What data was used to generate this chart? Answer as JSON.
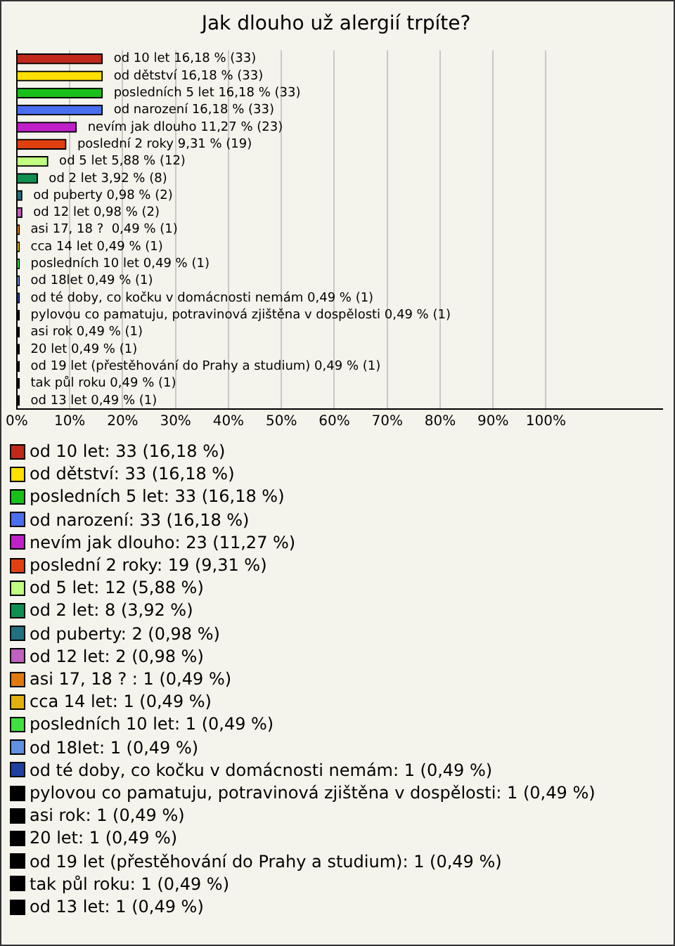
{
  "chart_data": {
    "type": "bar",
    "orientation": "horizontal",
    "title": "Jak dlouho už alergií trpíte?",
    "categories": [
      null,
      null,
      null,
      null,
      null,
      null,
      null,
      null,
      null,
      null,
      null,
      null,
      null,
      null,
      null,
      null,
      null,
      null,
      null,
      null,
      null
    ],
    "xlim": [
      0,
      122
    ],
    "xticks": [
      {
        "value": 0,
        "label": "0%"
      },
      {
        "value": 10,
        "label": "10%"
      },
      {
        "value": 20,
        "label": "20%"
      },
      {
        "value": 30,
        "label": "30%"
      },
      {
        "value": 40,
        "label": "40%"
      },
      {
        "value": 50,
        "label": "50%"
      },
      {
        "value": 60,
        "label": "60%"
      },
      {
        "value": 70,
        "label": "70%"
      },
      {
        "value": 80,
        "label": "80%"
      },
      {
        "value": 90,
        "label": "90%"
      },
      {
        "value": 100,
        "label": "100%"
      }
    ],
    "grid": "x",
    "legend": "bottom",
    "tick_labels": "x",
    "series": [
      {
        "name": "od 10 let: 33 (16,18 %)",
        "color": "#c0281a",
        "values": [
          16.18,
          null,
          null,
          null,
          null,
          null,
          null,
          null,
          null,
          null,
          null,
          null,
          null,
          null,
          null,
          null,
          null,
          null,
          null,
          null,
          null
        ],
        "value_labels": [
          "od 10 let 16,18 % (33)",
          null,
          null,
          null,
          null,
          null,
          null,
          null,
          null,
          null,
          null,
          null,
          null,
          null,
          null,
          null,
          null,
          null,
          null,
          null,
          null
        ]
      },
      {
        "name": "od dětství: 33 (16,18 %)",
        "color": "#ffe000",
        "values": [
          null,
          16.18,
          null,
          null,
          null,
          null,
          null,
          null,
          null,
          null,
          null,
          null,
          null,
          null,
          null,
          null,
          null,
          null,
          null,
          null,
          null
        ],
        "value_labels": [
          null,
          "od dětství 16,18 % (33)",
          null,
          null,
          null,
          null,
          null,
          null,
          null,
          null,
          null,
          null,
          null,
          null,
          null,
          null,
          null,
          null,
          null,
          null,
          null
        ]
      },
      {
        "name": "posledních 5 let: 33 (16,18 %)",
        "color": "#19c019",
        "values": [
          null,
          null,
          16.18,
          null,
          null,
          null,
          null,
          null,
          null,
          null,
          null,
          null,
          null,
          null,
          null,
          null,
          null,
          null,
          null,
          null,
          null
        ],
        "value_labels": [
          null,
          null,
          "posledních 5 let 16,18 % (33)",
          null,
          null,
          null,
          null,
          null,
          null,
          null,
          null,
          null,
          null,
          null,
          null,
          null,
          null,
          null,
          null,
          null,
          null
        ]
      },
      {
        "name": "od narození: 33 (16,18 %)",
        "color": "#4a6ef0",
        "values": [
          null,
          null,
          null,
          16.18,
          null,
          null,
          null,
          null,
          null,
          null,
          null,
          null,
          null,
          null,
          null,
          null,
          null,
          null,
          null,
          null,
          null
        ],
        "value_labels": [
          null,
          null,
          null,
          "od narození 16,18 % (33)",
          null,
          null,
          null,
          null,
          null,
          null,
          null,
          null,
          null,
          null,
          null,
          null,
          null,
          null,
          null,
          null,
          null
        ]
      },
      {
        "name": "nevím jak dlouho: 23 (11,27 %)",
        "color": "#c020c8",
        "values": [
          null,
          null,
          null,
          null,
          11.27,
          null,
          null,
          null,
          null,
          null,
          null,
          null,
          null,
          null,
          null,
          null,
          null,
          null,
          null,
          null,
          null
        ],
        "value_labels": [
          null,
          null,
          null,
          null,
          "nevím jak dlouho 11,27 % (23)",
          null,
          null,
          null,
          null,
          null,
          null,
          null,
          null,
          null,
          null,
          null,
          null,
          null,
          null,
          null,
          null
        ]
      },
      {
        "name": "poslední 2 roky: 19 (9,31 %)",
        "color": "#e04010",
        "values": [
          null,
          null,
          null,
          null,
          null,
          9.31,
          null,
          null,
          null,
          null,
          null,
          null,
          null,
          null,
          null,
          null,
          null,
          null,
          null,
          null,
          null
        ],
        "value_labels": [
          null,
          null,
          null,
          null,
          null,
          "poslední 2 roky 9,31 % (19)",
          null,
          null,
          null,
          null,
          null,
          null,
          null,
          null,
          null,
          null,
          null,
          null,
          null,
          null,
          null
        ]
      },
      {
        "name": "od 5 let: 12 (5,88 %)",
        "color": "#c0ff80",
        "values": [
          null,
          null,
          null,
          null,
          null,
          null,
          5.88,
          null,
          null,
          null,
          null,
          null,
          null,
          null,
          null,
          null,
          null,
          null,
          null,
          null,
          null
        ],
        "value_labels": [
          null,
          null,
          null,
          null,
          null,
          null,
          "od 5 let 5,88 % (12)",
          null,
          null,
          null,
          null,
          null,
          null,
          null,
          null,
          null,
          null,
          null,
          null,
          null,
          null
        ]
      },
      {
        "name": "od 2 let: 8 (3,92 %)",
        "color": "#109050",
        "values": [
          null,
          null,
          null,
          null,
          null,
          null,
          null,
          3.92,
          null,
          null,
          null,
          null,
          null,
          null,
          null,
          null,
          null,
          null,
          null,
          null,
          null
        ],
        "value_labels": [
          null,
          null,
          null,
          null,
          null,
          null,
          null,
          "od 2 let 3,92 % (8)",
          null,
          null,
          null,
          null,
          null,
          null,
          null,
          null,
          null,
          null,
          null,
          null,
          null
        ]
      },
      {
        "name": "od puberty: 2 (0,98 %)",
        "color": "#207080",
        "values": [
          null,
          null,
          null,
          null,
          null,
          null,
          null,
          null,
          0.98,
          null,
          null,
          null,
          null,
          null,
          null,
          null,
          null,
          null,
          null,
          null,
          null
        ],
        "value_labels": [
          null,
          null,
          null,
          null,
          null,
          null,
          null,
          null,
          "od puberty 0,98 % (2)",
          null,
          null,
          null,
          null,
          null,
          null,
          null,
          null,
          null,
          null,
          null,
          null
        ]
      },
      {
        "name": "od 12 let: 2 (0,98 %)",
        "color": "#c060c0",
        "values": [
          null,
          null,
          null,
          null,
          null,
          null,
          null,
          null,
          null,
          0.98,
          null,
          null,
          null,
          null,
          null,
          null,
          null,
          null,
          null,
          null,
          null
        ],
        "value_labels": [
          null,
          null,
          null,
          null,
          null,
          null,
          null,
          null,
          null,
          "od 12 let 0,98 % (2)",
          null,
          null,
          null,
          null,
          null,
          null,
          null,
          null,
          null,
          null,
          null
        ]
      },
      {
        "name": "asi 17, 18 ? : 1 (0,49 %)",
        "color": "#e07a10",
        "values": [
          null,
          null,
          null,
          null,
          null,
          null,
          null,
          null,
          null,
          null,
          0.49,
          null,
          null,
          null,
          null,
          null,
          null,
          null,
          null,
          null,
          null
        ],
        "value_labels": [
          null,
          null,
          null,
          null,
          null,
          null,
          null,
          null,
          null,
          null,
          "asi 17, 18 ?  0,49 % (1)",
          null,
          null,
          null,
          null,
          null,
          null,
          null,
          null,
          null,
          null
        ]
      },
      {
        "name": "cca 14 let: 1 (0,49 %)",
        "color": "#e0b010",
        "values": [
          null,
          null,
          null,
          null,
          null,
          null,
          null,
          null,
          null,
          null,
          null,
          0.49,
          null,
          null,
          null,
          null,
          null,
          null,
          null,
          null,
          null
        ],
        "value_labels": [
          null,
          null,
          null,
          null,
          null,
          null,
          null,
          null,
          null,
          null,
          null,
          "cca 14 let 0,49 % (1)",
          null,
          null,
          null,
          null,
          null,
          null,
          null,
          null,
          null
        ]
      },
      {
        "name": "posledních 10 let: 1 (0,49 %)",
        "color": "#40e040",
        "values": [
          null,
          null,
          null,
          null,
          null,
          null,
          null,
          null,
          null,
          null,
          null,
          null,
          0.49,
          null,
          null,
          null,
          null,
          null,
          null,
          null,
          null
        ],
        "value_labels": [
          null,
          null,
          null,
          null,
          null,
          null,
          null,
          null,
          null,
          null,
          null,
          null,
          "posledních 10 let 0,49 % (1)",
          null,
          null,
          null,
          null,
          null,
          null,
          null,
          null
        ]
      },
      {
        "name": "od 18let: 1 (0,49 %)",
        "color": "#6090e0",
        "values": [
          null,
          null,
          null,
          null,
          null,
          null,
          null,
          null,
          null,
          null,
          null,
          null,
          null,
          0.49,
          null,
          null,
          null,
          null,
          null,
          null,
          null
        ],
        "value_labels": [
          null,
          null,
          null,
          null,
          null,
          null,
          null,
          null,
          null,
          null,
          null,
          null,
          null,
          "od 18let 0,49 % (1)",
          null,
          null,
          null,
          null,
          null,
          null,
          null
        ]
      },
      {
        "name": "od té doby, co kočku v domácnosti nemám: 1 (0,49 %)",
        "color": "#2040a0",
        "values": [
          null,
          null,
          null,
          null,
          null,
          null,
          null,
          null,
          null,
          null,
          null,
          null,
          null,
          null,
          0.49,
          null,
          null,
          null,
          null,
          null,
          null
        ],
        "value_labels": [
          null,
          null,
          null,
          null,
          null,
          null,
          null,
          null,
          null,
          null,
          null,
          null,
          null,
          null,
          "od té doby, co kočku v domácnosti nemám 0,49 % (1)",
          null,
          null,
          null,
          null,
          null,
          null
        ]
      },
      {
        "name": "pylovou co pamatuju, potravinová zjištěna v dospělosti: 1 (0,49 %)",
        "color": "#000000",
        "values": [
          null,
          null,
          null,
          null,
          null,
          null,
          null,
          null,
          null,
          null,
          null,
          null,
          null,
          null,
          null,
          0.49,
          null,
          null,
          null,
          null,
          null
        ],
        "value_labels": [
          null,
          null,
          null,
          null,
          null,
          null,
          null,
          null,
          null,
          null,
          null,
          null,
          null,
          null,
          null,
          "pylovou co pamatuju, potravinová zjištěna v dospělosti 0,49 % (1)",
          null,
          null,
          null,
          null,
          null
        ]
      },
      {
        "name": "asi rok: 1 (0,49 %)",
        "color": "#000000",
        "values": [
          null,
          null,
          null,
          null,
          null,
          null,
          null,
          null,
          null,
          null,
          null,
          null,
          null,
          null,
          null,
          null,
          0.49,
          null,
          null,
          null,
          null
        ],
        "value_labels": [
          null,
          null,
          null,
          null,
          null,
          null,
          null,
          null,
          null,
          null,
          null,
          null,
          null,
          null,
          null,
          null,
          "asi rok 0,49 % (1)",
          null,
          null,
          null,
          null
        ]
      },
      {
        "name": "20 let: 1 (0,49 %)",
        "color": "#000000",
        "values": [
          null,
          null,
          null,
          null,
          null,
          null,
          null,
          null,
          null,
          null,
          null,
          null,
          null,
          null,
          null,
          null,
          null,
          0.49,
          null,
          null,
          null
        ],
        "value_labels": [
          null,
          null,
          null,
          null,
          null,
          null,
          null,
          null,
          null,
          null,
          null,
          null,
          null,
          null,
          null,
          null,
          null,
          "20 let 0,49 % (1)",
          null,
          null,
          null
        ]
      },
      {
        "name": "od 19 let (přestěhování do Prahy a studium): 1 (0,49 %)",
        "color": "#000000",
        "values": [
          null,
          null,
          null,
          null,
          null,
          null,
          null,
          null,
          null,
          null,
          null,
          null,
          null,
          null,
          null,
          null,
          null,
          null,
          0.49,
          null,
          null
        ],
        "value_labels": [
          null,
          null,
          null,
          null,
          null,
          null,
          null,
          null,
          null,
          null,
          null,
          null,
          null,
          null,
          null,
          null,
          null,
          null,
          "od 19 let (přestěhování do Prahy a studium) 0,49 % (1)",
          null,
          null
        ]
      },
      {
        "name": "tak půl roku: 1 (0,49 %)",
        "color": "#000000",
        "values": [
          null,
          null,
          null,
          null,
          null,
          null,
          null,
          null,
          null,
          null,
          null,
          null,
          null,
          null,
          null,
          null,
          null,
          null,
          null,
          0.49,
          null
        ],
        "value_labels": [
          null,
          null,
          null,
          null,
          null,
          null,
          null,
          null,
          null,
          null,
          null,
          null,
          null,
          null,
          null,
          null,
          null,
          null,
          null,
          "tak půl roku 0,49 % (1)",
          null
        ]
      },
      {
        "name": "od 13 let: 1 (0,49 %)",
        "color": "#000000",
        "values": [
          null,
          null,
          null,
          null,
          null,
          null,
          null,
          null,
          null,
          null,
          null,
          null,
          null,
          null,
          null,
          null,
          null,
          null,
          null,
          null,
          0.49
        ],
        "value_labels": [
          null,
          null,
          null,
          null,
          null,
          null,
          null,
          null,
          null,
          null,
          null,
          null,
          null,
          null,
          null,
          null,
          null,
          null,
          null,
          null,
          "od 13 let 0,49 % (1)"
        ]
      }
    ]
  }
}
